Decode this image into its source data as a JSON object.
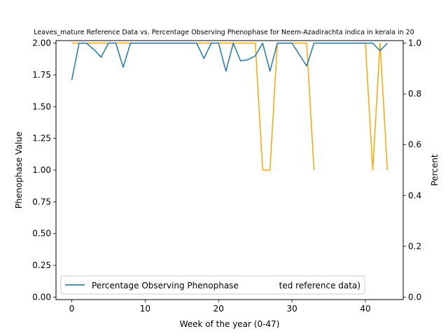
{
  "chart_data": {
    "type": "line",
    "title": "Leaves_mature Reference Data vs. Percentage Observing Phenophase for Neem-Azadirachta indica in kerala in 20",
    "xlabel": "Week of the year (0-47)",
    "ylabel_left": "Phenophase Value",
    "ylabel_right": "Percent",
    "xlim": [
      -2.15,
      45.15
    ],
    "ylim_left": [
      -0.02,
      2.02
    ],
    "ylim_right": [
      -0.01,
      1.01
    ],
    "x_ticks": [
      0,
      10,
      20,
      30,
      40
    ],
    "y_ticks_left": [
      0.0,
      0.25,
      0.5,
      0.75,
      1.0,
      1.25,
      1.5,
      1.75,
      2.0
    ],
    "y_ticks_right": [
      0.0,
      0.2,
      0.4,
      0.6,
      0.8,
      1.0
    ],
    "legend": {
      "position": "lower-center",
      "entries": [
        "Percentage Observing Phenophase",
        "ted reference data)"
      ]
    },
    "series": [
      {
        "name": "reference data",
        "axis": "left",
        "color": "#ffa500",
        "x": [
          0,
          1,
          2,
          3,
          4,
          5,
          6,
          7,
          8,
          9,
          10,
          11,
          12,
          13,
          14,
          15,
          16,
          17,
          18,
          19,
          20,
          21,
          22,
          23,
          24,
          25,
          26,
          27,
          28,
          29,
          30,
          31,
          32,
          33,
          34,
          35,
          36,
          37,
          38,
          39,
          40,
          41,
          42,
          43
        ],
        "y": [
          2,
          2,
          2,
          2,
          2,
          2,
          2,
          2,
          2,
          2,
          2,
          2,
          2,
          2,
          2,
          2,
          2,
          2,
          2,
          2,
          2,
          2,
          2,
          2,
          2,
          2,
          1,
          1,
          2,
          2,
          2,
          2,
          2,
          1,
          null,
          null,
          null,
          null,
          2,
          2,
          2,
          1,
          2,
          1
        ]
      },
      {
        "name": "Percentage Observing Phenophase",
        "axis": "right",
        "color": "#1f77b4",
        "x": [
          0,
          1,
          2,
          3,
          4,
          5,
          6,
          7,
          8,
          9,
          10,
          11,
          12,
          13,
          14,
          15,
          16,
          17,
          18,
          19,
          20,
          21,
          22,
          23,
          24,
          25,
          26,
          27,
          28,
          29,
          30,
          31,
          32,
          33,
          34,
          35,
          36,
          37,
          38,
          39,
          40,
          41,
          42,
          43
        ],
        "y": [
          0.855,
          1,
          1,
          0.975,
          0.945,
          1,
          1,
          0.905,
          1,
          1,
          1,
          1,
          1,
          1,
          1,
          1,
          1,
          1,
          0.94,
          1,
          1,
          0.89,
          1,
          0.93,
          0.935,
          0.95,
          1,
          0.89,
          1,
          1,
          1,
          0.955,
          0.91,
          1,
          1,
          1,
          1,
          1,
          1,
          1,
          1,
          1,
          0.97,
          1
        ]
      }
    ]
  }
}
